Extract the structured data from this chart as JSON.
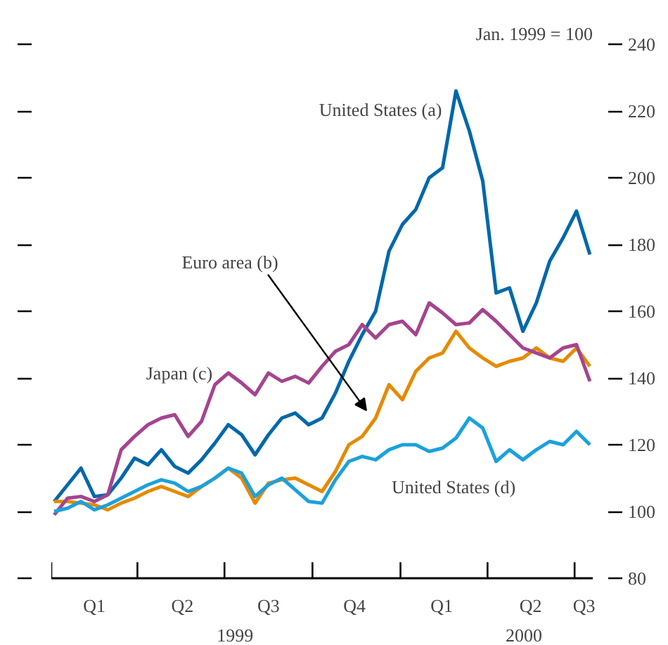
{
  "chart_data": {
    "type": "line",
    "x": [
      "1999-01-04",
      "1999-01-18",
      "1999-02-01",
      "1999-02-15",
      "1999-03-01",
      "1999-03-15",
      "1999-03-29",
      "1999-04-12",
      "1999-04-26",
      "1999-05-10",
      "1999-05-24",
      "1999-06-07",
      "1999-06-21",
      "1999-07-05",
      "1999-07-19",
      "1999-08-02",
      "1999-08-16",
      "1999-08-30",
      "1999-09-13",
      "1999-09-27",
      "1999-10-11",
      "1999-10-25",
      "1999-11-08",
      "1999-11-22",
      "1999-12-06",
      "1999-12-20",
      "2000-01-03",
      "2000-01-17",
      "2000-01-31",
      "2000-02-14",
      "2000-02-28",
      "2000-03-13",
      "2000-03-27",
      "2000-04-10",
      "2000-04-24",
      "2000-05-08",
      "2000-05-22",
      "2000-06-05",
      "2000-06-19",
      "2000-07-03",
      "2000-07-17"
    ],
    "series": [
      {
        "color": "#0068a8",
        "values": [
          103,
          108,
          113,
          104.5,
          105,
          110,
          116,
          114,
          118.5,
          113.5,
          111.5,
          115.5,
          120.5,
          126,
          123,
          117,
          123,
          128,
          129.5,
          126,
          128,
          135.5,
          145,
          153,
          160,
          178,
          186,
          190.5,
          200,
          203,
          226,
          214,
          199,
          165.5,
          167,
          154,
          162.5,
          175,
          182,
          190,
          177
        ]
      },
      {
        "color": "#e58a00",
        "values": [
          103,
          103,
          102.5,
          102,
          100.5,
          102.5,
          104,
          106,
          107.5,
          106,
          104.5,
          107.5,
          110,
          113,
          110,
          102.5,
          108.5,
          109.5,
          110,
          108,
          106,
          112,
          120,
          122.5,
          128,
          138,
          133.5,
          142,
          146,
          147.5,
          154,
          149,
          146,
          143.5,
          145,
          146,
          149,
          146,
          145,
          149,
          143.5
        ]
      },
      {
        "color": "#a4448f",
        "values": [
          99,
          104,
          104.5,
          103,
          105,
          118.5,
          122.5,
          126,
          128,
          129,
          122.5,
          127,
          138,
          141.5,
          138.5,
          135,
          141.5,
          139,
          140.5,
          138.5,
          143.5,
          148,
          150,
          156,
          152,
          156,
          157,
          153,
          162.5,
          159.5,
          156,
          156.5,
          160.5,
          157,
          153,
          149,
          147.5,
          146,
          149,
          150,
          139
        ]
      },
      {
        "color": "#1ba1dc",
        "values": [
          100,
          101,
          103,
          100.5,
          102,
          104,
          106,
          108,
          109.5,
          108.5,
          106,
          107.5,
          110,
          113,
          111.5,
          104.5,
          108,
          110,
          106.5,
          103,
          102.5,
          109.5,
          115,
          116.5,
          115.5,
          118.5,
          120,
          120,
          118,
          119,
          122,
          128,
          125,
          115,
          118.5,
          115.5,
          118.5,
          121,
          120,
          124,
          120
        ]
      }
    ],
    "xlim": [
      "1999-01-01",
      "2000-07-20"
    ],
    "xticks": [
      {
        "value": "1999-01-01",
        "label": null
      },
      {
        "value": "1999-02-15",
        "label": "Q1"
      },
      {
        "value": "1999-04-01",
        "label": null
      },
      {
        "value": "1999-05-18",
        "label": "Q2"
      },
      {
        "value": "1999-07-01",
        "label": null
      },
      {
        "value": "1999-08-16",
        "label": "Q3"
      },
      {
        "value": "1999-10-01",
        "label": null
      },
      {
        "value": "1999-11-14",
        "label": "Q4"
      },
      {
        "value": "2000-01-01",
        "label": null
      },
      {
        "value": "2000-02-13",
        "label": "Q1"
      },
      {
        "value": "2000-04-01",
        "label": null
      },
      {
        "value": "2000-05-16",
        "label": "Q2"
      },
      {
        "value": "2000-07-01",
        "label": null
      },
      {
        "value": "2000-07-11",
        "label": "Q3"
      }
    ],
    "x2lim": [
      "1999-01-01",
      "2000-07-20"
    ],
    "x2ticks": [
      {
        "value": "1999-07-12",
        "label": "1999"
      },
      {
        "value": "2000-05-09",
        "label": "2000"
      }
    ],
    "ylim": [
      80,
      240
    ],
    "yticks": [
      80,
      100,
      120,
      140,
      160,
      180,
      200,
      220,
      240
    ],
    "annotations": [
      "Jan. 1999 = 100",
      "United States (a)",
      "Euro area (b)",
      "Japan (c)",
      "United States (d)"
    ]
  }
}
